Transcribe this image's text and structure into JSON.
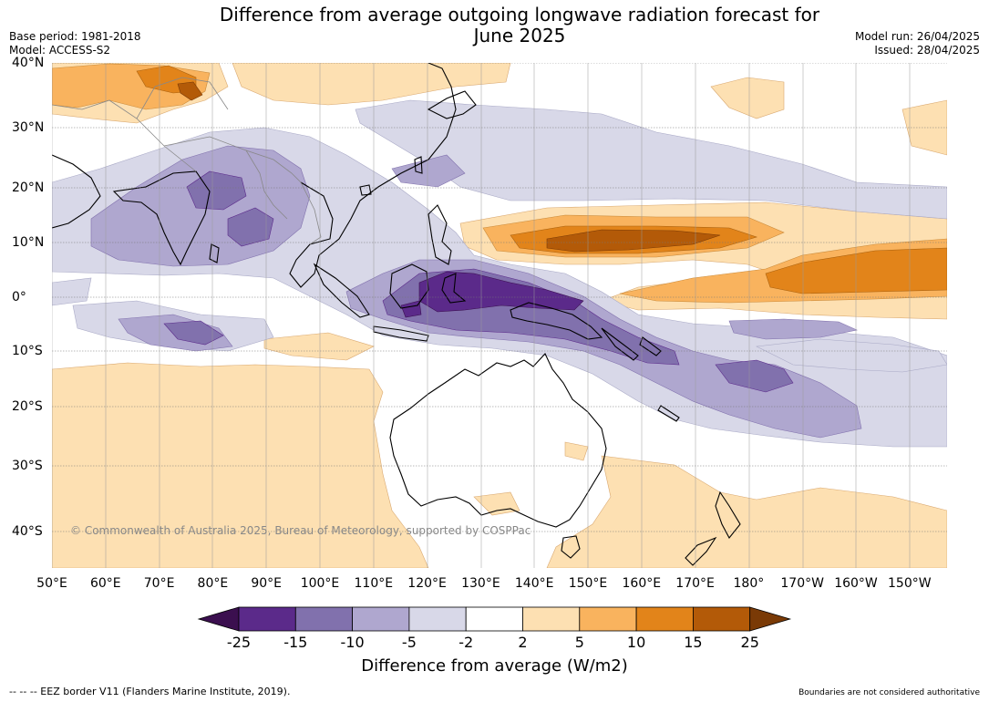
{
  "title_line1": "Difference from average outgoing longwave radiation forecast for",
  "title_line2": "June 2025",
  "meta_left": {
    "base_period": "Base period: 1981-2018",
    "model": "Model: ACCESS-S2"
  },
  "meta_right": {
    "model_run": "Model run: 26/04/2025",
    "issued": "Issued: 28/04/2025"
  },
  "lon_labels": [
    "50°E",
    "60°E",
    "70°E",
    "80°E",
    "90°E",
    "100°E",
    "110°E",
    "120°E",
    "130°E",
    "140°E",
    "150°E",
    "160°E",
    "170°E",
    "180°",
    "170°W",
    "160°W",
    "150°W"
  ],
  "lat_labels": [
    "40°N",
    "30°N",
    "20°N",
    "10°N",
    "0°",
    "10°S",
    "20°S",
    "30°S",
    "40°S"
  ],
  "copyright": "© Commonwealth of Australia 2025, Bureau of Meteorology, supported by COSPPac",
  "colorbar": {
    "ticks": [
      "-25",
      "-15",
      "-10",
      "-5",
      "-2",
      "2",
      "5",
      "10",
      "15",
      "25"
    ],
    "colors": [
      "#3b0f4f",
      "#5b2a8a",
      "#8171ad",
      "#afa7cf",
      "#d8d8e8",
      "#ffffff",
      "#fde0b2",
      "#f9b35e",
      "#e2841a",
      "#b35a08",
      "#7a3a06"
    ],
    "title": "Difference from average (W/m2)"
  },
  "footer_left": "--  --  -- EEZ border V11 (Flanders Marine Institute, 2019).",
  "footer_right": "Boundaries are not considered authoritative"
}
